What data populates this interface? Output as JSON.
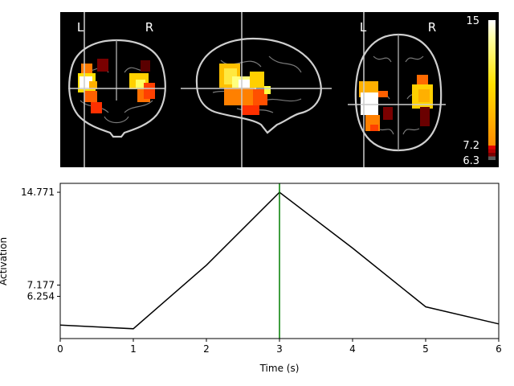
{
  "brain": {
    "left_label": "L",
    "right_label": "R",
    "left_label_axial": "L",
    "right_label_axial": "R",
    "colorbar": {
      "max_label": "15",
      "mid_label": "7.2",
      "min_label": "6.3",
      "colors": [
        "#5a5a5a",
        "#7a0000",
        "#b40000",
        "#e00000",
        "#ff3000",
        "#ff6a00",
        "#ff9c00",
        "#ffc400",
        "#ffe800",
        "#ffff40",
        "#ffff9a",
        "#ffffff"
      ]
    }
  },
  "chart_data": {
    "type": "line",
    "x": [
      0,
      1,
      2,
      3,
      4,
      5,
      6
    ],
    "y": [
      3.9,
      3.6,
      8.8,
      14.771,
      10.2,
      5.4,
      4.0
    ],
    "xlabel": "Time (s)",
    "ylabel": "Activation",
    "xlim": [
      0,
      6
    ],
    "ylim": [
      2.8,
      15.5
    ],
    "xticks": [
      0,
      1,
      2,
      3,
      4,
      5,
      6
    ],
    "yticks": [
      6.254,
      7.177,
      14.771
    ],
    "ytick_labels": [
      "6.254",
      "7.177",
      "14.771"
    ],
    "vline_x": 3,
    "line_color": "#000000",
    "vline_color": "#007f00",
    "grid": false
  }
}
